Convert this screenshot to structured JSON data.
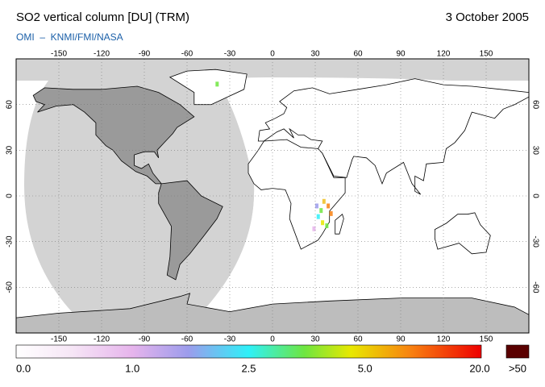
{
  "title": "SO2 vertical column [DU] (TRM)",
  "date": "3 October 2005",
  "subtitle": "OMI  –  KNMI/FMI/NASA",
  "lon_ticks": [
    -150,
    -120,
    -90,
    -60,
    -30,
    0,
    30,
    60,
    90,
    120,
    150
  ],
  "lat_ticks": [
    60,
    30,
    0,
    -30,
    -60
  ],
  "colorbar": {
    "labels": [
      "0.0",
      "1.0",
      "2.5",
      "5.0",
      "20.0"
    ],
    "overflow_label": ">50"
  }
}
